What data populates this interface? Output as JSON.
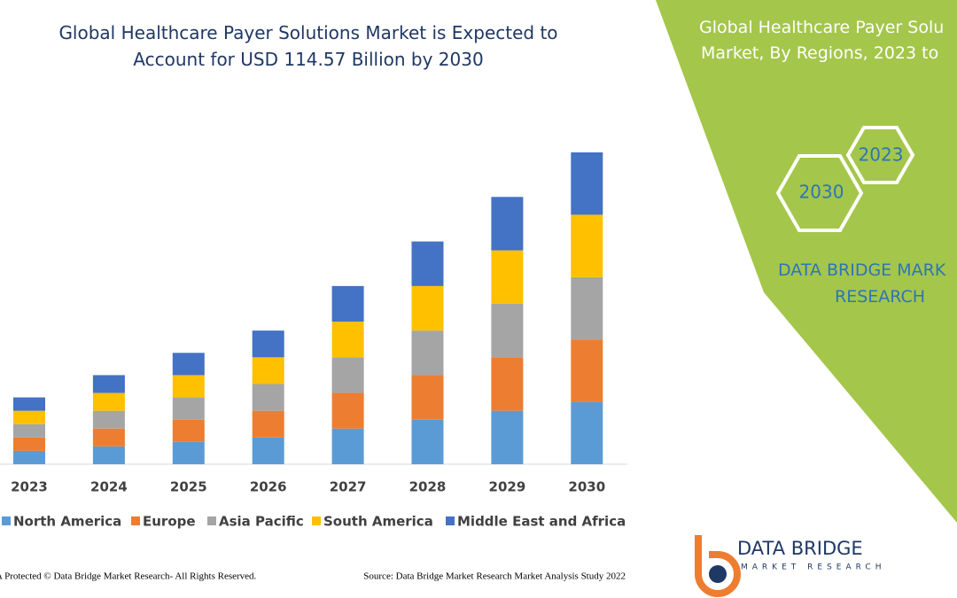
{
  "chart_data": {
    "type": "stacked-bar",
    "title": "Global Healthcare Payer Solutions Market is Expected to Account for USD 114.57 Billion by 2030",
    "categories": [
      "2023",
      "2024",
      "2025",
      "2026",
      "2027",
      "2028",
      "2029",
      "2030"
    ],
    "series": [
      {
        "name": "North America",
        "color": "#5b9bd5",
        "values": [
          3,
          4,
          5,
          6,
          8,
          10,
          12,
          14
        ]
      },
      {
        "name": "Europe",
        "color": "#ed7d31",
        "values": [
          3,
          4,
          5,
          6,
          8,
          10,
          12,
          14
        ]
      },
      {
        "name": "Asia Pacific",
        "color": "#a5a5a5",
        "values": [
          3,
          4,
          5,
          6,
          8,
          10,
          12,
          14
        ]
      },
      {
        "name": "South America",
        "color": "#ffc000",
        "values": [
          3,
          4,
          5,
          6,
          8,
          10,
          12,
          14
        ]
      },
      {
        "name": "Middle East and Africa",
        "color": "#4472c4",
        "values": [
          3,
          4,
          5,
          6,
          8,
          10,
          12,
          14
        ]
      }
    ]
  },
  "footer": {
    "copyright": "A Protected © Data Bridge Market Research- All Rights Reserved.",
    "source": "Source: Data Bridge Market Research Market Analysis Study 2022"
  },
  "side_panel": {
    "title_lines": [
      "Global Healthcare Payer Solu",
      "Market, By Regions, 2023 to"
    ],
    "hexagons": [
      "2023",
      "2030"
    ],
    "brand_lines": [
      "DATA BRIDGE MARK",
      "RESEARCH"
    ]
  },
  "logo": {
    "name": "DATA BRIDGE",
    "tagline": "MARKET RESEARCH"
  }
}
